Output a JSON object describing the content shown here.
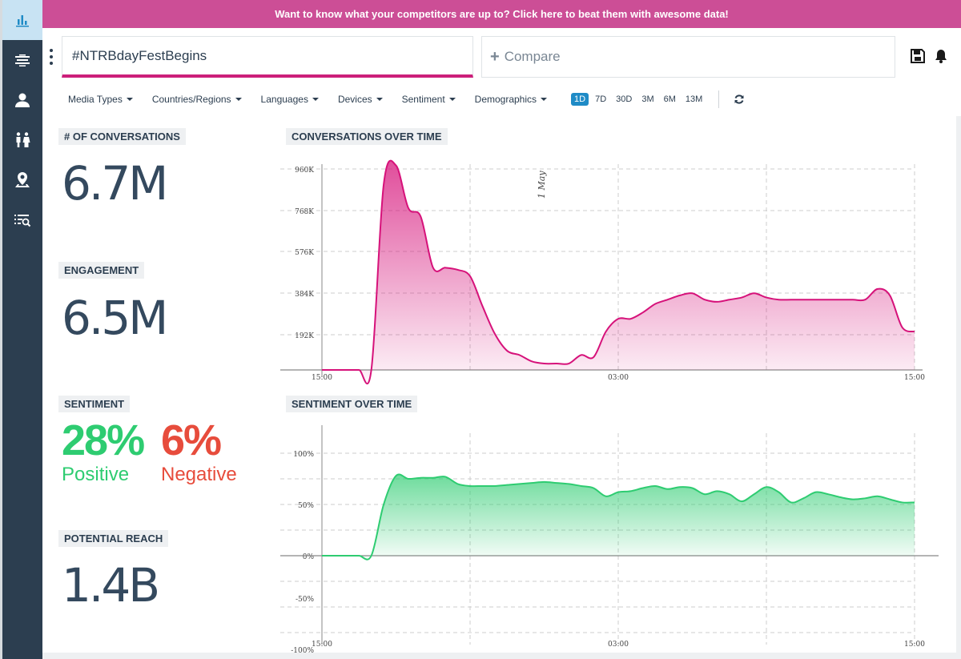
{
  "banner": {
    "text": "Want to know what your competitors are up to? Click here to beat them with awesome data!"
  },
  "sidebar": {
    "items": [
      {
        "icon": "bar-chart-icon"
      },
      {
        "icon": "layers-icon"
      },
      {
        "icon": "user-icon"
      },
      {
        "icon": "demographics-icon"
      },
      {
        "icon": "location-icon"
      },
      {
        "icon": "search-list-icon"
      }
    ]
  },
  "header": {
    "search_value": "#NTRBdayFestBegins",
    "compare_label": "Compare"
  },
  "filters": {
    "items": [
      "Media Types",
      "Countries/Regions",
      "Languages",
      "Devices",
      "Sentiment",
      "Demographics"
    ],
    "ranges": [
      "1D",
      "7D",
      "30D",
      "3M",
      "6M",
      "13M"
    ],
    "active_range": "1D"
  },
  "metrics": {
    "conversations_label": "# OF CONVERSATIONS",
    "conversations_value": "6.7M",
    "engagement_label": "ENGAGEMENT",
    "engagement_value": "6.5M",
    "sentiment_label": "SENTIMENT",
    "positive_value": "28%",
    "positive_label": "Positive",
    "negative_value": "6%",
    "negative_label": "Negative",
    "reach_label": "POTENTIAL REACH",
    "reach_value": "1.4B"
  },
  "colors": {
    "accent": "#cc4e96",
    "conversation_line": "#d6127a",
    "sentiment_line": "#2ecc71",
    "positive": "#2ecc71",
    "negative": "#e74c3c",
    "active_range": "#1f8bc6"
  },
  "chart_data": [
    {
      "type": "area",
      "title": "CONVERSATIONS OVER TIME",
      "x_ticks": [
        "15:00",
        "03:00",
        "15:00"
      ],
      "y_ticks": [
        "960K",
        "768K",
        "576K",
        "384K",
        "192K"
      ],
      "annotation": "1 May",
      "ylim": [
        0,
        1000000
      ],
      "x": [
        0,
        0.5,
        1,
        1.5,
        2,
        2.5,
        3,
        3.5,
        4,
        4.5,
        5,
        5.5,
        6,
        6.5,
        7,
        7.5,
        8,
        8.5,
        9,
        9.5,
        10,
        10.5,
        11,
        11.5,
        12,
        12.5,
        13,
        13.5,
        14,
        14.5,
        15,
        15.5,
        16,
        16.5,
        17,
        17.5,
        18,
        18.5,
        19,
        19.5,
        20,
        20.5,
        21,
        21.5,
        22,
        22.5,
        23,
        23.5,
        24
      ],
      "values": [
        0,
        0,
        0,
        0,
        0,
        870000,
        960000,
        760000,
        720000,
        480000,
        480000,
        470000,
        440000,
        300000,
        170000,
        90000,
        70000,
        40000,
        30000,
        30000,
        30000,
        70000,
        60000,
        180000,
        240000,
        240000,
        270000,
        310000,
        330000,
        350000,
        360000,
        330000,
        320000,
        330000,
        340000,
        360000,
        340000,
        330000,
        330000,
        330000,
        330000,
        330000,
        330000,
        330000,
        330000,
        380000,
        350000,
        200000,
        180000
      ]
    },
    {
      "type": "area",
      "title": "SENTIMENT OVER TIME",
      "x_ticks": [
        "15:00",
        "03:00",
        "15:00"
      ],
      "y_ticks": [
        "100%",
        "50%",
        "0%",
        "-50%",
        "-100%"
      ],
      "ylim": [
        -100,
        100
      ],
      "x": [
        0,
        0.5,
        1,
        1.5,
        2,
        2.5,
        3,
        3.5,
        4,
        4.5,
        5,
        5.5,
        6,
        6.5,
        7,
        7.5,
        8,
        8.5,
        9,
        9.5,
        10,
        10.5,
        11,
        11.5,
        12,
        12.5,
        13,
        13.5,
        14,
        14.5,
        15,
        15.5,
        16,
        16.5,
        17,
        17.5,
        18,
        18.5,
        19,
        19.5,
        20,
        20.5,
        21,
        21.5,
        22,
        22.5,
        23,
        23.5,
        24
      ],
      "values": [
        0,
        0,
        0,
        0,
        0,
        50,
        78,
        75,
        76,
        76,
        77,
        70,
        68,
        68,
        68,
        69,
        70,
        71,
        72,
        71,
        70,
        68,
        66,
        58,
        62,
        63,
        66,
        68,
        65,
        67,
        66,
        60,
        63,
        60,
        53,
        60,
        67,
        62,
        52,
        56,
        62,
        60,
        57,
        55,
        56,
        58,
        55,
        52,
        52
      ]
    }
  ]
}
